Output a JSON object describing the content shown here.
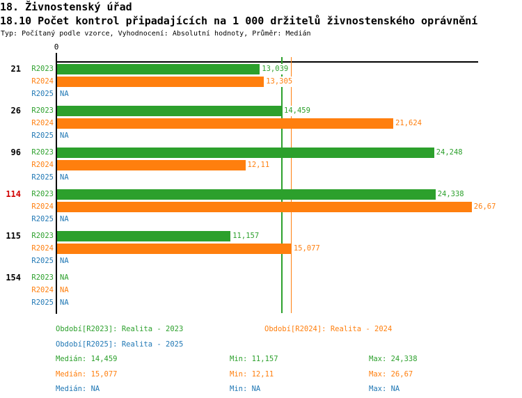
{
  "header": {
    "title": "18. Živnostenský úřad",
    "subtitle": "18.10 Počet kontrol připadajících na 1 000 držitelů živnostenského oprávnění",
    "meta": "Typ: Počítaný podle vzorce, Vyhodnocení: Absolutní hodnoty, Průměr: Medián"
  },
  "colors": {
    "r2023_green": "#2CA02C",
    "r2024_orange": "#FF7F0E",
    "r2025_blue": "#1F77B4",
    "highlight_red": "#D10000",
    "axis_black": "#000000"
  },
  "chart_data": {
    "type": "bar",
    "orientation": "horizontal",
    "title": "18.10 Počet kontrol připadajících na 1 000 držitelů živnostenského oprávnění",
    "xlabel": "",
    "ylabel": "",
    "x_zero_label": "0",
    "xlim": [
      0,
      28.1
    ],
    "grid": false,
    "categories": [
      "21",
      "26",
      "96",
      "114",
      "115",
      "154"
    ],
    "highlighted_category": "114",
    "series": [
      {
        "name": "R2023",
        "color": "#2CA02C",
        "values": [
          13.039,
          14.459,
          24.248,
          24.338,
          11.157,
          null
        ],
        "labels": [
          "13,039",
          "14,459",
          "24,248",
          "24,338",
          "11,157",
          "NA"
        ]
      },
      {
        "name": "R2024",
        "color": "#FF7F0E",
        "values": [
          13.305,
          21.624,
          12.11,
          26.67,
          15.077,
          null
        ],
        "labels": [
          "13,305",
          "21,624",
          "12,11",
          "26,67",
          "15,077",
          "NA"
        ]
      },
      {
        "name": "R2025",
        "color": "#1F77B4",
        "values": [
          null,
          null,
          null,
          null,
          null,
          null
        ],
        "labels": [
          "NA",
          "NA",
          "NA",
          "NA",
          "NA",
          "NA"
        ]
      }
    ],
    "median_lines": [
      {
        "series": "R2023",
        "value": 14.459
      },
      {
        "series": "R2024",
        "value": 15.077
      }
    ]
  },
  "legend": {
    "items": [
      {
        "label": "Období[R2023]: Realita - 2023"
      },
      {
        "label": "Období[R2024]: Realita - 2024"
      },
      {
        "label": "Období[R2025]: Realita - 2025"
      }
    ]
  },
  "stats": {
    "rows": [
      {
        "median": "Medián: 14,459",
        "min": "Min: 11,157",
        "max": "Max: 24,338"
      },
      {
        "median": "Medián: 15,077",
        "min": "Min: 12,11",
        "max": "Max: 26,67"
      },
      {
        "median": "Medián: NA",
        "min": "Min: NA",
        "max": "Max: NA"
      }
    ]
  }
}
